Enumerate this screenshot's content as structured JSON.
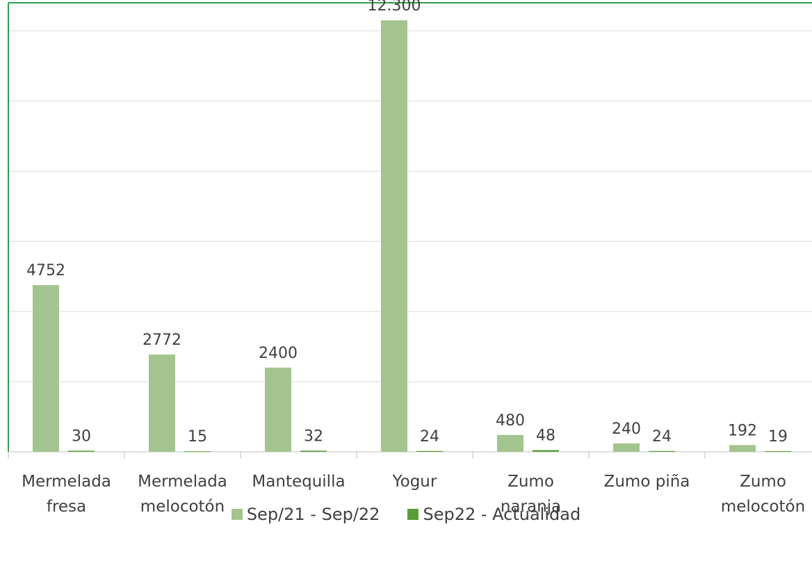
{
  "chart_data": {
    "type": "bar",
    "title": "",
    "xlabel": "",
    "ylabel": "",
    "ylim": [
      0,
      12800
    ],
    "grid": true,
    "legend_position": "bottom",
    "categories": [
      [
        "Mermelada",
        "fresa"
      ],
      [
        "Mermelada",
        "melocotón"
      ],
      [
        "Mantequilla"
      ],
      [
        "Yogur"
      ],
      [
        "Zumo",
        "naranja"
      ],
      [
        "Zumo piña"
      ],
      [
        "Zumo",
        "melocotón"
      ]
    ],
    "series": [
      {
        "name": "Sep/21 - Sep/22",
        "color": "#a3c48e",
        "values": [
          4752,
          2772,
          2400,
          12300,
          480,
          240,
          192
        ],
        "labels": [
          "4752",
          "2772",
          "2400",
          "12.300",
          "480",
          "240",
          "192"
        ]
      },
      {
        "name": "Sep22 - Actualidad",
        "color": "#5a9e3a",
        "values": [
          30,
          15,
          32,
          24,
          48,
          24,
          19
        ],
        "labels": [
          "30",
          "15",
          "32",
          "24",
          "48",
          "24",
          "19"
        ]
      }
    ],
    "colors": {
      "grid": "#d9d9d9",
      "border": "#2e9e4a",
      "axis": "#bfbfbf",
      "text": "#404040"
    }
  }
}
